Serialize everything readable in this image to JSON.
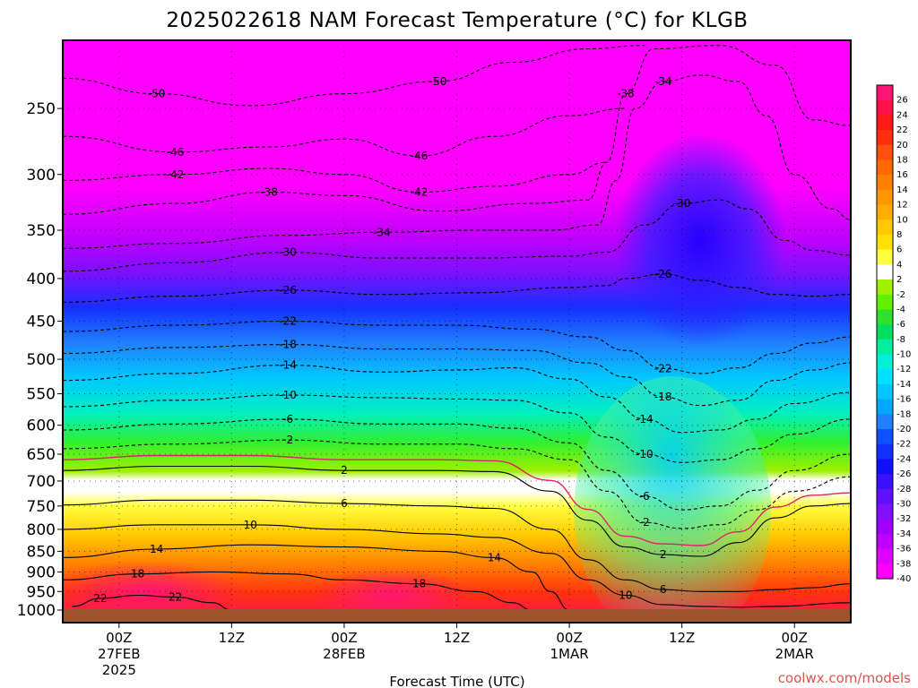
{
  "title": "2025022618 NAM Forecast Temperature (°C) for KLGB",
  "xlabel": "Forecast Time (UTC)",
  "credit": "coolwx.com/models",
  "colors": {
    "credit": "#d9534f",
    "freezing_line": "#e0206e",
    "ground": "#a0522d",
    "frame": "#000000"
  },
  "chart_data": {
    "type": "heatmap",
    "variable": "Temperature",
    "units": "°C",
    "model": "NAM",
    "station": "KLGB",
    "init": "2025022618",
    "y_axis": {
      "ticks": [
        250,
        300,
        350,
        400,
        450,
        500,
        550,
        600,
        650,
        700,
        750,
        800,
        850,
        900,
        950,
        1000
      ],
      "range": [
        200,
        1000
      ],
      "scale": "log",
      "inverted": true
    },
    "x_axis": {
      "ticks": [
        {
          "label": "00Z",
          "sub": [
            "27FEB",
            "2025"
          ],
          "hour": 6
        },
        {
          "label": "12Z",
          "sub": [],
          "hour": 18
        },
        {
          "label": "00Z",
          "sub": [
            "28FEB"
          ],
          "hour": 30
        },
        {
          "label": "12Z",
          "sub": [],
          "hour": 42
        },
        {
          "label": "00Z",
          "sub": [
            "1MAR"
          ],
          "hour": 54
        },
        {
          "label": "12Z",
          "sub": [],
          "hour": 66
        },
        {
          "label": "00Z",
          "sub": [
            "2MAR"
          ],
          "hour": 78
        }
      ],
      "range": [
        0,
        84
      ]
    },
    "grid": true,
    "colorbar": {
      "placement": "right",
      "labels": [
        26,
        24,
        22,
        20,
        18,
        16,
        14,
        12,
        10,
        8,
        6,
        4,
        2,
        -2,
        -4,
        -6,
        -8,
        -10,
        -12,
        -14,
        -16,
        -18,
        -20,
        -22,
        -24,
        -26,
        -28,
        -30,
        -32,
        -34,
        -36,
        -38,
        -40
      ]
    },
    "isotherms": [
      {
        "value": -50,
        "p": 250,
        "pts": [
          [
            0,
            230
          ],
          [
            10,
            240
          ],
          [
            20,
            248
          ],
          [
            30,
            240
          ],
          [
            40,
            232
          ],
          [
            48,
            220
          ],
          [
            56,
            212
          ],
          [
            62,
            210
          ]
        ]
      },
      {
        "value": -46,
        "p": 280,
        "pts": [
          [
            0,
            270
          ],
          [
            12,
            282
          ],
          [
            22,
            278
          ],
          [
            30,
            272
          ],
          [
            38,
            285
          ],
          [
            46,
            270
          ],
          [
            54,
            255
          ],
          [
            60,
            250
          ]
        ]
      },
      {
        "value": -42,
        "p": 300,
        "pts": [
          [
            0,
            305
          ],
          [
            12,
            300
          ],
          [
            22,
            295
          ],
          [
            30,
            300
          ],
          [
            38,
            315
          ],
          [
            46,
            310
          ],
          [
            54,
            300
          ],
          [
            58,
            290
          ]
        ]
      },
      {
        "value": -38,
        "p": 320,
        "pts": [
          [
            0,
            335
          ],
          [
            12,
            325
          ],
          [
            22,
            315
          ],
          [
            30,
            318
          ],
          [
            40,
            332
          ],
          [
            50,
            325
          ],
          [
            56,
            322
          ],
          [
            58,
            290
          ],
          [
            60,
            240
          ],
          [
            63,
            212
          ],
          [
            70,
            210
          ],
          [
            76,
            222
          ],
          [
            80,
            258
          ],
          [
            84,
            262
          ]
        ]
      },
      {
        "value": -34,
        "p": 360,
        "pts": [
          [
            0,
            368
          ],
          [
            12,
            363
          ],
          [
            24,
            355
          ],
          [
            34,
            352
          ],
          [
            44,
            350
          ],
          [
            52,
            350
          ],
          [
            57,
            345
          ],
          [
            59,
            305
          ],
          [
            61,
            250
          ],
          [
            64,
            232
          ],
          [
            68,
            228
          ],
          [
            72,
            232
          ],
          [
            75,
            255
          ],
          [
            78,
            300
          ],
          [
            82,
            330
          ],
          [
            84,
            340
          ]
        ]
      },
      {
        "value": -30,
        "p": 380,
        "pts": [
          [
            0,
            392
          ],
          [
            12,
            383
          ],
          [
            24,
            372
          ],
          [
            34,
            378
          ],
          [
            44,
            378
          ],
          [
            54,
            376
          ],
          [
            58,
            372
          ],
          [
            62,
            345
          ],
          [
            66,
            325
          ],
          [
            70,
            322
          ],
          [
            73,
            330
          ],
          [
            77,
            360
          ],
          [
            80,
            370
          ],
          [
            84,
            375
          ]
        ]
      },
      {
        "value": -26,
        "p": 420,
        "pts": [
          [
            0,
            427
          ],
          [
            12,
            420
          ],
          [
            24,
            413
          ],
          [
            34,
            418
          ],
          [
            44,
            416
          ],
          [
            54,
            410
          ],
          [
            58,
            408
          ],
          [
            60,
            400
          ],
          [
            64,
            395
          ],
          [
            68,
            402
          ],
          [
            72,
            410
          ],
          [
            76,
            418
          ],
          [
            80,
            420
          ],
          [
            84,
            418
          ]
        ]
      },
      {
        "value": -22,
        "p": 450,
        "pts": [
          [
            0,
            463
          ],
          [
            12,
            455
          ],
          [
            24,
            450
          ],
          [
            34,
            455
          ],
          [
            42,
            455
          ],
          [
            50,
            460
          ],
          [
            56,
            470
          ],
          [
            60,
            488
          ],
          [
            64,
            513
          ],
          [
            68,
            520
          ],
          [
            72,
            512
          ],
          [
            76,
            492
          ],
          [
            80,
            478
          ],
          [
            84,
            470
          ]
        ]
      },
      {
        "value": -18,
        "p": 485,
        "pts": [
          [
            0,
            492
          ],
          [
            12,
            484
          ],
          [
            24,
            480
          ],
          [
            34,
            486
          ],
          [
            42,
            486
          ],
          [
            50,
            488
          ],
          [
            56,
            505
          ],
          [
            60,
            525
          ],
          [
            64,
            555
          ],
          [
            68,
            568
          ],
          [
            72,
            560
          ],
          [
            76,
            530
          ],
          [
            80,
            515
          ],
          [
            84,
            505
          ]
        ]
      },
      {
        "value": -14,
        "p": 512,
        "pts": [
          [
            0,
            530
          ],
          [
            12,
            520
          ],
          [
            24,
            508
          ],
          [
            34,
            518
          ],
          [
            42,
            515
          ],
          [
            48,
            512
          ],
          [
            54,
            528
          ],
          [
            58,
            555
          ],
          [
            62,
            590
          ],
          [
            66,
            612
          ],
          [
            70,
            608
          ],
          [
            74,
            590
          ],
          [
            78,
            565
          ],
          [
            84,
            548
          ]
        ]
      },
      {
        "value": -10,
        "p": 558,
        "pts": [
          [
            0,
            570
          ],
          [
            12,
            560
          ],
          [
            24,
            552
          ],
          [
            34,
            556
          ],
          [
            42,
            558
          ],
          [
            48,
            560
          ],
          [
            54,
            580
          ],
          [
            58,
            620
          ],
          [
            62,
            650
          ],
          [
            66,
            665
          ],
          [
            70,
            660
          ],
          [
            74,
            640
          ],
          [
            78,
            615
          ],
          [
            84,
            590
          ]
        ]
      },
      {
        "value": -6,
        "p": 598,
        "pts": [
          [
            0,
            608
          ],
          [
            12,
            598
          ],
          [
            24,
            590
          ],
          [
            34,
            598
          ],
          [
            42,
            598
          ],
          [
            48,
            605
          ],
          [
            54,
            630
          ],
          [
            58,
            680
          ],
          [
            62,
            730
          ],
          [
            66,
            758
          ],
          [
            70,
            750
          ],
          [
            74,
            718
          ],
          [
            78,
            680
          ],
          [
            84,
            650
          ]
        ]
      },
      {
        "value": -2,
        "p": 635,
        "pts": [
          [
            0,
            640
          ],
          [
            12,
            632
          ],
          [
            24,
            625
          ],
          [
            34,
            632
          ],
          [
            42,
            632
          ],
          [
            48,
            640
          ],
          [
            54,
            660
          ],
          [
            58,
            720
          ],
          [
            62,
            785
          ],
          [
            66,
            798
          ],
          [
            70,
            790
          ],
          [
            74,
            758
          ],
          [
            78,
            720
          ],
          [
            84,
            692
          ]
        ]
      },
      {
        "value": 2,
        "p": 672,
        "pts": [
          [
            0,
            680
          ],
          [
            10,
            672
          ],
          [
            20,
            672
          ],
          [
            30,
            680
          ],
          [
            40,
            680
          ],
          [
            46,
            682
          ],
          [
            52,
            720
          ],
          [
            56,
            780
          ],
          [
            60,
            840
          ],
          [
            64,
            858
          ],
          [
            68,
            862
          ],
          [
            72,
            830
          ],
          [
            76,
            775
          ],
          [
            80,
            750
          ],
          [
            84,
            745
          ]
        ]
      },
      {
        "value": 6,
        "p": 740,
        "pts": [
          [
            0,
            748
          ],
          [
            10,
            738
          ],
          [
            20,
            738
          ],
          [
            30,
            745
          ],
          [
            40,
            750
          ],
          [
            46,
            755
          ],
          [
            52,
            800
          ],
          [
            56,
            870
          ],
          [
            60,
            920
          ],
          [
            64,
            945
          ],
          [
            68,
            950
          ],
          [
            72,
            950
          ],
          [
            76,
            945
          ],
          [
            80,
            940
          ],
          [
            84,
            930
          ]
        ]
      },
      {
        "value": 10,
        "p": 790,
        "pts": [
          [
            0,
            800
          ],
          [
            10,
            790
          ],
          [
            20,
            790
          ],
          [
            30,
            800
          ],
          [
            40,
            810
          ],
          [
            46,
            818
          ],
          [
            52,
            855
          ],
          [
            56,
            920
          ],
          [
            60,
            960
          ],
          [
            64,
            985
          ],
          [
            68,
            990
          ],
          [
            72,
            992
          ],
          [
            76,
            990
          ],
          [
            84,
            980
          ]
        ]
      },
      {
        "value": 14,
        "p": 842,
        "pts": [
          [
            0,
            865
          ],
          [
            10,
            845
          ],
          [
            20,
            835
          ],
          [
            30,
            840
          ],
          [
            40,
            850
          ],
          [
            46,
            865
          ],
          [
            50,
            900
          ],
          [
            52,
            950
          ],
          [
            54,
            1000
          ]
        ]
      },
      {
        "value": 18,
        "p": 905,
        "pts": [
          [
            0,
            920
          ],
          [
            8,
            905
          ],
          [
            16,
            900
          ],
          [
            24,
            905
          ],
          [
            30,
            920
          ],
          [
            38,
            930
          ],
          [
            44,
            950
          ],
          [
            48,
            980
          ],
          [
            50,
            1000
          ]
        ]
      },
      {
        "value": 22,
        "p": 985,
        "pts": [
          [
            1,
            990
          ],
          [
            4,
            968
          ],
          [
            8,
            960
          ],
          [
            12,
            965
          ],
          [
            16,
            980
          ],
          [
            18,
            1000
          ]
        ]
      }
    ]
  }
}
